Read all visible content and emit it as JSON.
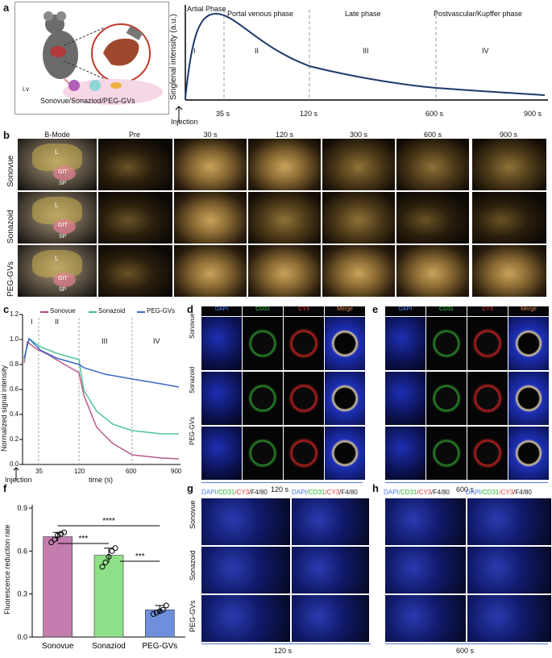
{
  "panel_a": {
    "label": "a",
    "agents": "Sonovue/Sonaziod/PEG-GVs",
    "iv": "i.v",
    "ylabel": "Singlenal intensity (a.u.)",
    "phases": [
      "Artial Phase",
      "Portal venous phase",
      "Late  phase",
      "Postvascular/Kupffer  phase"
    ],
    "roman": [
      "I",
      "II",
      "III",
      "IV"
    ],
    "ticks": [
      "35 s",
      "120 s",
      "600 s",
      "900 s"
    ],
    "injection": "Injection"
  },
  "panel_b": {
    "label": "b",
    "columns": [
      "B-Mode",
      "Pre",
      "30 s",
      "120 s",
      "300 s",
      "600 s",
      "900 s"
    ],
    "rows": [
      "Sonovue",
      "Sonazoid",
      "PEG-GVs"
    ],
    "organs": [
      "L",
      "GIT",
      "SP"
    ]
  },
  "panel_c": {
    "label": "c",
    "ylabel": "Normalized signal intensity",
    "xlabel": "time (s)",
    "injection": "Injection",
    "yticks": [
      "0.0",
      "0.2",
      "0.4",
      "0.6",
      "0.8",
      "1.0",
      "1.2"
    ],
    "xticks": [
      "35",
      "120",
      "600",
      "900"
    ],
    "roman": [
      "I",
      "II",
      "III",
      "IV"
    ],
    "legend": [
      "Sonovue",
      "Sonazoid",
      "PEG-GVs"
    ],
    "colors": {
      "sonovue": "#b0477e",
      "sonazoid": "#3fbf8b",
      "peg": "#3a69c8"
    }
  },
  "panel_d": {
    "label": "d",
    "stains": [
      "DAPI",
      "CD31",
      "CY3",
      "Merge"
    ],
    "rows": [
      "Sonovue",
      "Sonazoid",
      "PEG-GVs"
    ],
    "time": "120 s"
  },
  "panel_e": {
    "label": "e",
    "stains": [
      "DAPI",
      "CD31",
      "CY3",
      "Merge"
    ],
    "time": "600 s"
  },
  "panel_f": {
    "label": "f",
    "ylabel": "Fluorescence reduction rate",
    "yticks": [
      "0.0",
      "0.3",
      "0.6",
      "0.9"
    ],
    "significance": [
      "****",
      "***",
      "***"
    ],
    "chart_data": {
      "type": "bar",
      "categories": [
        "Sonovue",
        "Sonaziod",
        "PEG-GVs"
      ],
      "values": [
        0.7,
        0.57,
        0.19
      ],
      "errors": [
        0.03,
        0.05,
        0.03
      ],
      "points": [
        [
          0.66,
          0.68,
          0.71,
          0.72,
          0.73
        ],
        [
          0.49,
          0.52,
          0.56,
          0.6,
          0.62
        ],
        [
          0.16,
          0.17,
          0.18,
          0.19,
          0.22
        ]
      ],
      "ylim": [
        0,
        0.9
      ],
      "colors": [
        "#c37dae",
        "#8fe088",
        "#6d8fdc"
      ]
    }
  },
  "panel_g": {
    "label": "g",
    "stain_header": [
      "DAPI",
      "/CD31",
      "/CY3",
      "/F4/80"
    ],
    "rows": [
      "Sonovue",
      "Sonazoid",
      "PEG-GVs"
    ],
    "time": "120 s"
  },
  "panel_h": {
    "label": "h",
    "stain_header": [
      "DAPI",
      "/CD31",
      "/CY3",
      "/F4/80"
    ],
    "time": "600 s"
  }
}
